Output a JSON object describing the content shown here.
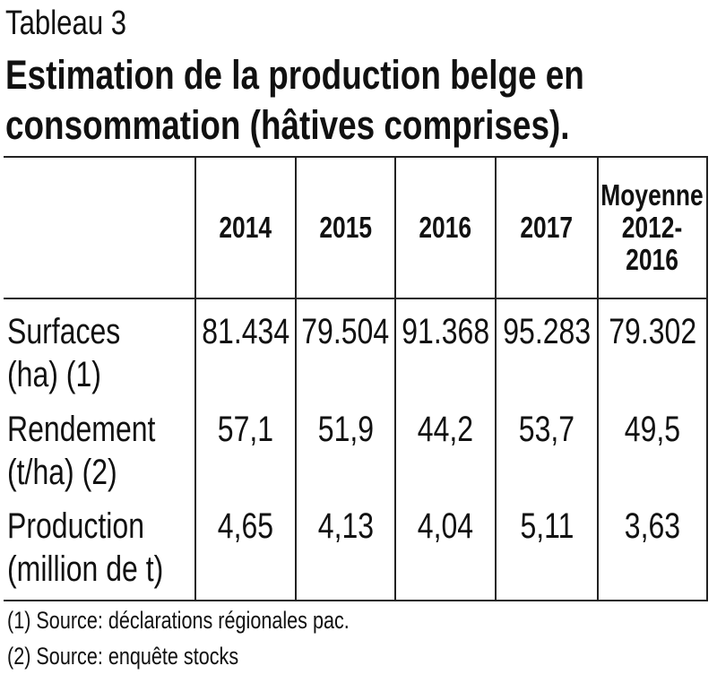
{
  "table_label": "Tableau 3",
  "title_lines": [
    "Estimation de la production belge en",
    "consommation (hâtives comprises)."
  ],
  "columns": [
    "2014",
    "2015",
    "2016",
    "2017",
    "Moyenne\n2012-\n2016"
  ],
  "rows": [
    {
      "label": "Surfaces\n(ha) (1)",
      "values": [
        "81.434",
        "79.504",
        "91.368",
        "95.283",
        "79.302"
      ]
    },
    {
      "label": "Rendement\n(t/ha) (2)",
      "values": [
        "57,1",
        "51,9",
        "44,2",
        "53,7",
        "49,5"
      ]
    },
    {
      "label": "Production\n(million de t)",
      "values": [
        "4,65",
        "4,13",
        "4,04",
        "5,11",
        "3,63"
      ]
    }
  ],
  "footnotes": [
    "(1) Source: déclarations régionales pac.",
    "(2) Source: enquête stocks"
  ]
}
